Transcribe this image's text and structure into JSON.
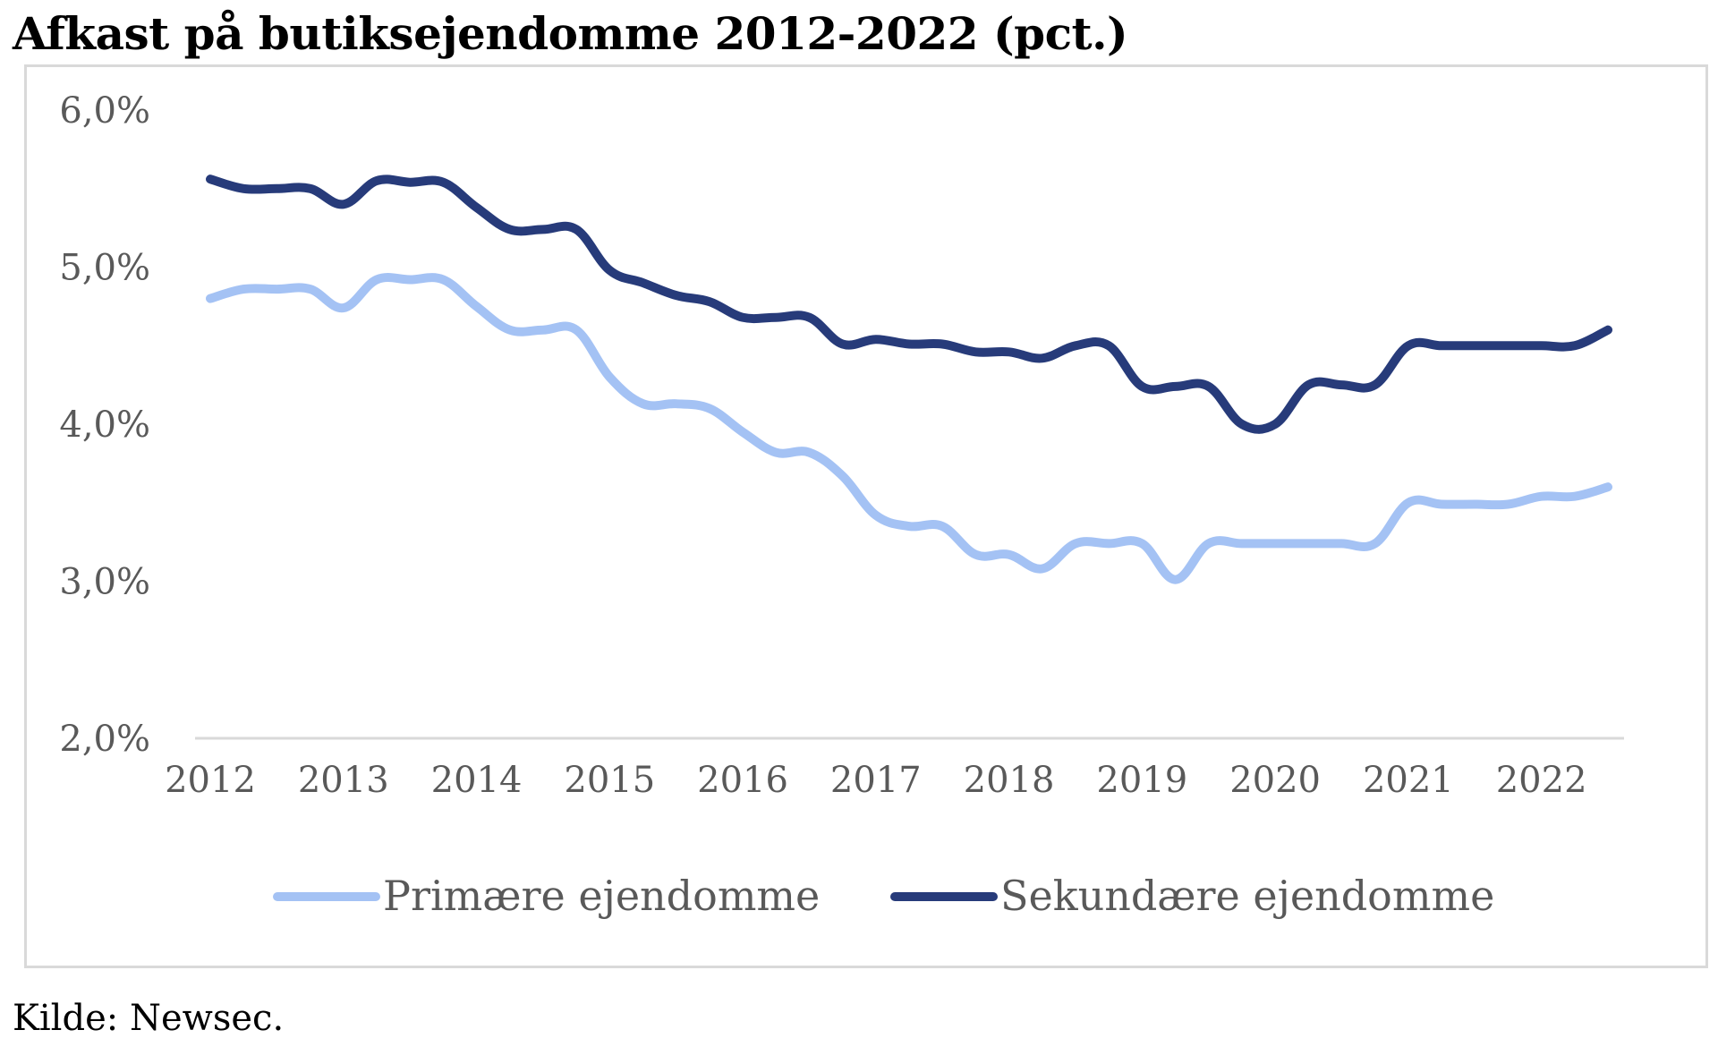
{
  "title": "Afkast på butiksejendomme 2012-2022 (pct.)",
  "source": "Kilde: Newsec.",
  "colors": {
    "primary": "#a4c2f4",
    "secondary": "#273b7a",
    "axis": "#d9d9d9",
    "tick_text": "#595959"
  },
  "chart_data": {
    "type": "line",
    "title": "Afkast på butiksejendomme 2012-2022 (pct.)",
    "xlabel": "",
    "ylabel": "",
    "ylim": [
      2.0,
      6.0
    ],
    "xlim": [
      2012.0,
      2022.5
    ],
    "y_ticks": [
      2.0,
      3.0,
      4.0,
      5.0,
      6.0
    ],
    "y_tick_labels": [
      "2,0%",
      "3,0%",
      "4,0%",
      "5,0%",
      "6,0%"
    ],
    "x_ticks": [
      2012,
      2013,
      2014,
      2015,
      2016,
      2017,
      2018,
      2019,
      2020,
      2021,
      2022
    ],
    "x_tick_labels": [
      "2012",
      "2013",
      "2014",
      "2015",
      "2016",
      "2017",
      "2018",
      "2019",
      "2020",
      "2021",
      "2022"
    ],
    "grid": false,
    "legend_position": "bottom",
    "series": [
      {
        "name": "Primære ejendomme",
        "color": "#a4c2f4",
        "x": [
          2012.0,
          2012.25,
          2012.5,
          2012.75,
          2013.0,
          2013.25,
          2013.5,
          2013.75,
          2014.0,
          2014.25,
          2014.5,
          2014.75,
          2015.0,
          2015.25,
          2015.5,
          2015.75,
          2016.0,
          2016.25,
          2016.5,
          2016.75,
          2017.0,
          2017.25,
          2017.5,
          2017.75,
          2018.0,
          2018.25,
          2018.5,
          2018.75,
          2019.0,
          2019.25,
          2019.5,
          2019.75,
          2020.0,
          2020.25,
          2020.5,
          2020.75,
          2021.0,
          2021.25,
          2021.5,
          2021.75,
          2022.0,
          2022.25,
          2022.5
        ],
        "values": [
          4.8,
          4.86,
          4.86,
          4.86,
          4.74,
          4.92,
          4.92,
          4.92,
          4.75,
          4.6,
          4.6,
          4.6,
          4.3,
          4.13,
          4.13,
          4.1,
          3.95,
          3.82,
          3.82,
          3.67,
          3.42,
          3.35,
          3.35,
          3.17,
          3.17,
          3.08,
          3.24,
          3.24,
          3.24,
          3.01,
          3.24,
          3.24,
          3.24,
          3.24,
          3.24,
          3.24,
          3.5,
          3.49,
          3.49,
          3.49,
          3.54,
          3.54,
          3.6
        ]
      },
      {
        "name": "Sekundære ejendomme",
        "color": "#273b7a",
        "x": [
          2012.0,
          2012.25,
          2012.5,
          2012.75,
          2013.0,
          2013.25,
          2013.5,
          2013.75,
          2014.0,
          2014.25,
          2014.5,
          2014.75,
          2015.0,
          2015.25,
          2015.5,
          2015.75,
          2016.0,
          2016.25,
          2016.5,
          2016.75,
          2017.0,
          2017.25,
          2017.5,
          2017.75,
          2018.0,
          2018.25,
          2018.5,
          2018.75,
          2019.0,
          2019.25,
          2019.5,
          2019.75,
          2020.0,
          2020.25,
          2020.5,
          2020.75,
          2021.0,
          2021.25,
          2021.5,
          2021.75,
          2022.0,
          2022.25,
          2022.5
        ],
        "values": [
          5.56,
          5.5,
          5.5,
          5.5,
          5.4,
          5.55,
          5.54,
          5.54,
          5.38,
          5.24,
          5.24,
          5.24,
          4.98,
          4.9,
          4.82,
          4.78,
          4.68,
          4.68,
          4.68,
          4.51,
          4.54,
          4.51,
          4.51,
          4.46,
          4.46,
          4.42,
          4.5,
          4.5,
          4.24,
          4.24,
          4.24,
          4.0,
          4.0,
          4.25,
          4.25,
          4.25,
          4.5,
          4.5,
          4.5,
          4.5,
          4.5,
          4.5,
          4.6
        ]
      }
    ]
  }
}
